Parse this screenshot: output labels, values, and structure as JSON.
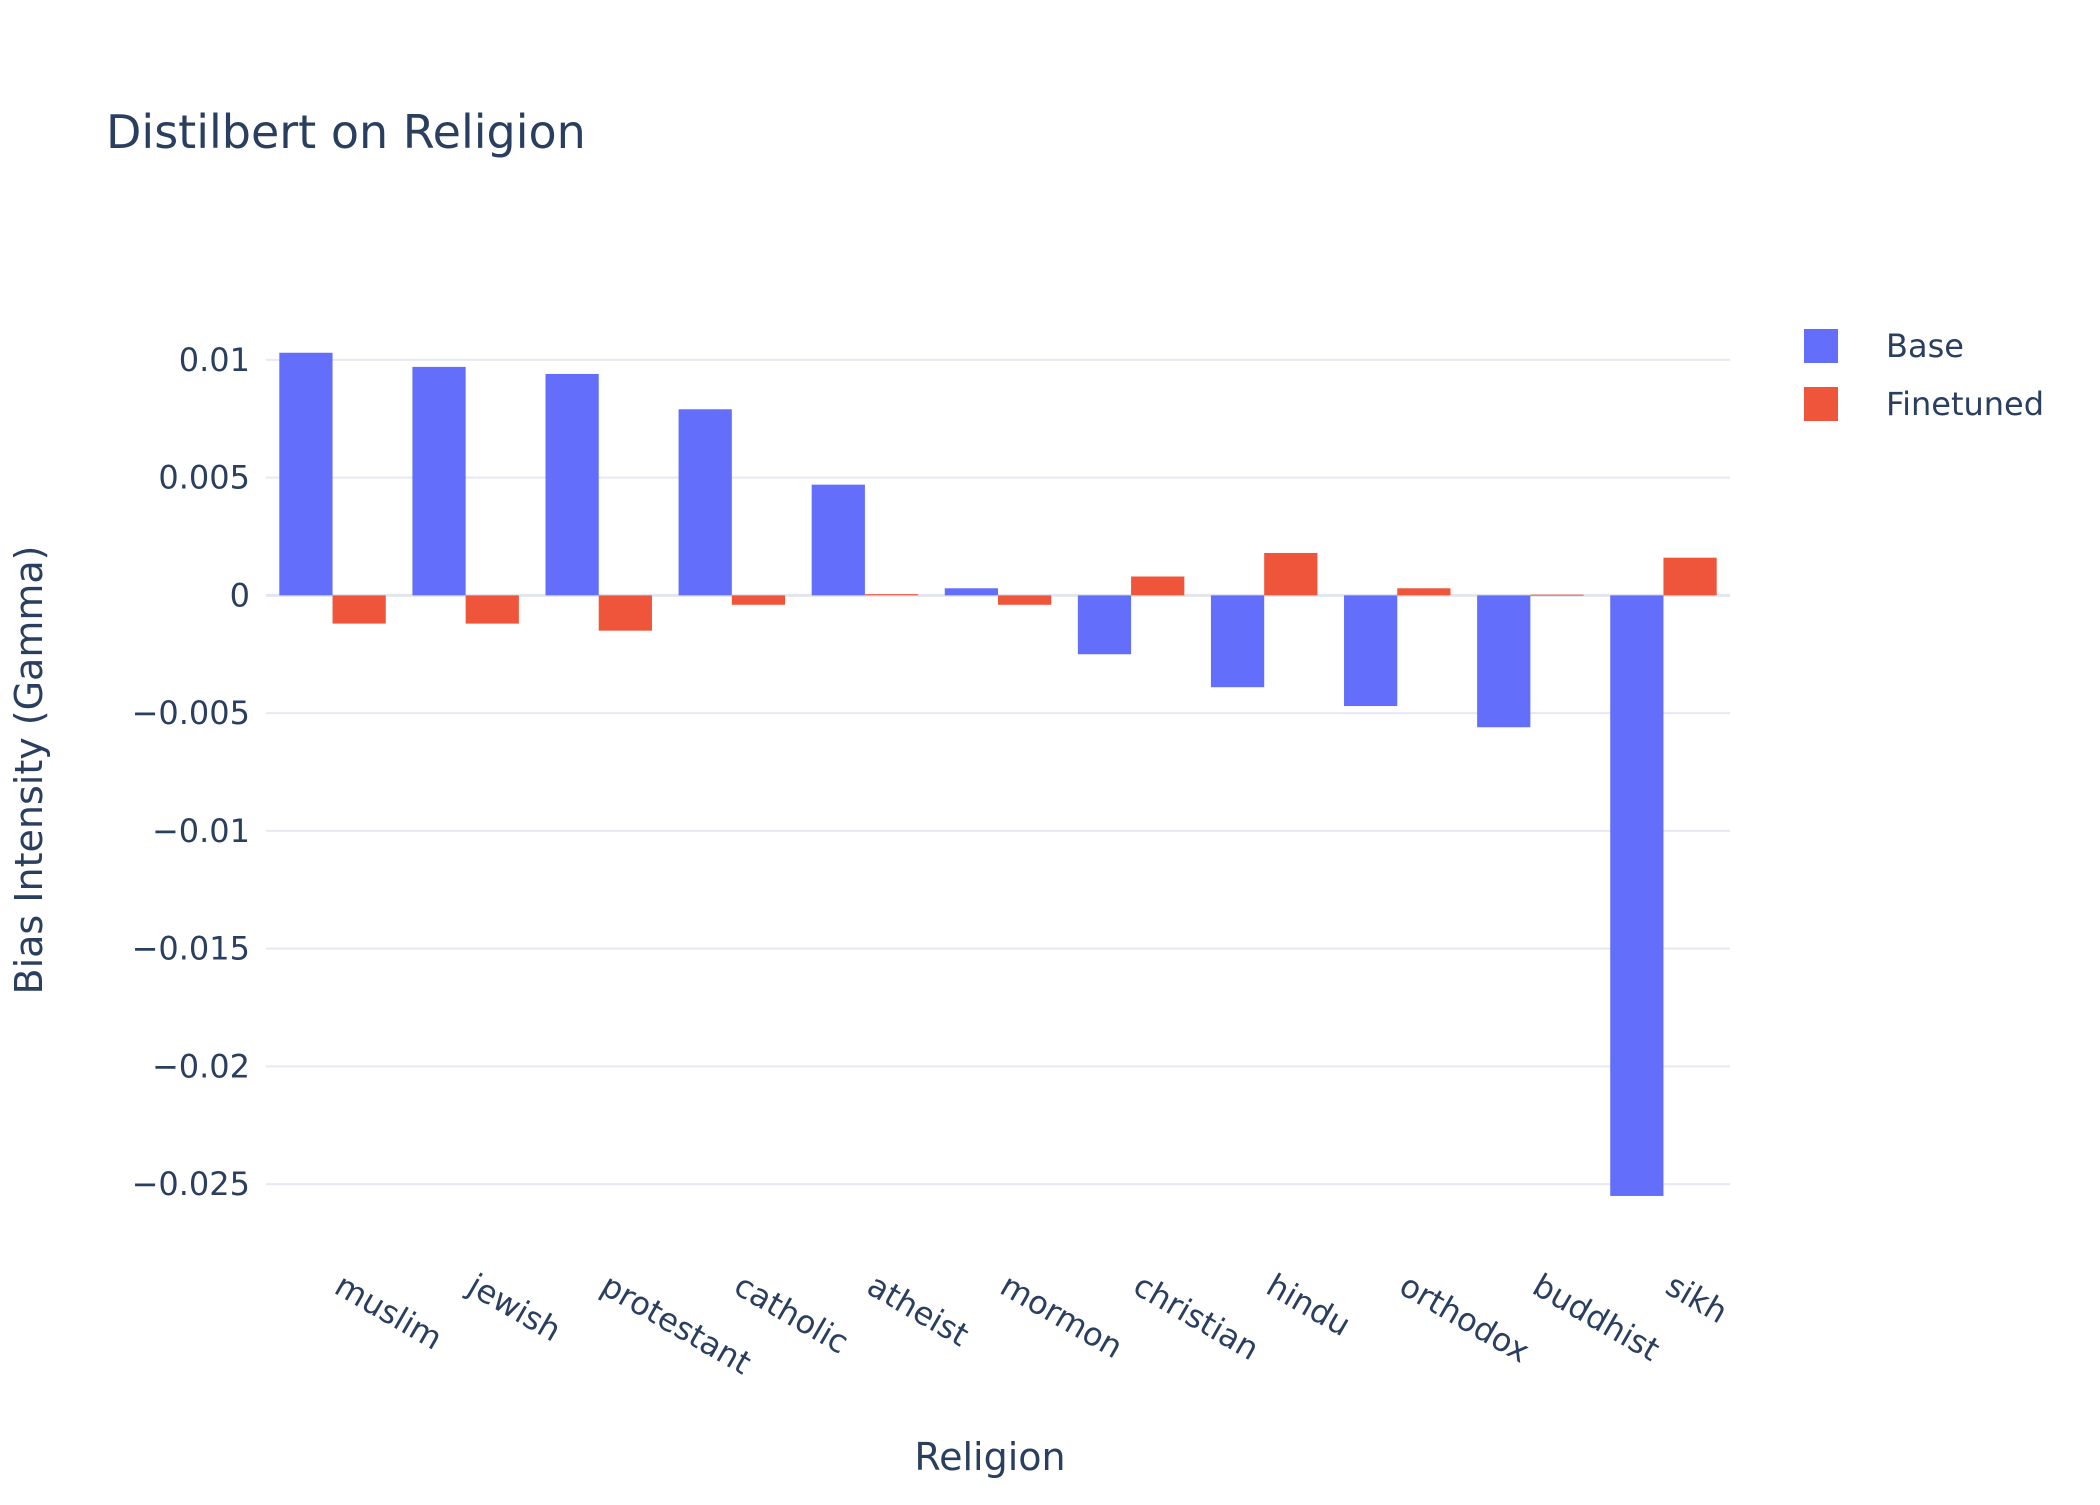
{
  "chart_data": {
    "type": "bar",
    "title": "Distilbert on Religion",
    "xlabel": "Religion",
    "ylabel": "Bias Intensity (Gamma)",
    "categories": [
      "muslim",
      "jewish",
      "protestant",
      "catholic",
      "atheist",
      "mormon",
      "christian",
      "hindu",
      "orthodox",
      "buddhist",
      "sikh"
    ],
    "series": [
      {
        "name": "Base",
        "color": "#636efa",
        "values": [
          0.0103,
          0.0097,
          0.0094,
          0.0079,
          0.0047,
          0.0003,
          -0.0025,
          -0.0039,
          -0.0047,
          -0.0056,
          -0.0255
        ]
      },
      {
        "name": "Finetuned",
        "color": "#ef553b",
        "values": [
          -0.0012,
          -0.0012,
          -0.0015,
          -0.0004,
          5e-05,
          -0.0004,
          0.0008,
          0.0018,
          0.0003,
          3e-05,
          0.0016
        ]
      }
    ],
    "ylim": [
      -0.0272,
      0.0122
    ],
    "yticks": [
      0.01,
      0.005,
      0,
      -0.005,
      -0.01,
      -0.015,
      -0.02,
      -0.025
    ],
    "ytick_labels": [
      "0.01",
      "0.005",
      "0",
      "−0.005",
      "−0.01",
      "−0.015",
      "−0.02",
      "−0.025"
    ],
    "grid": true,
    "legend_position": "top-right",
    "tick_label_rotation": 30
  }
}
